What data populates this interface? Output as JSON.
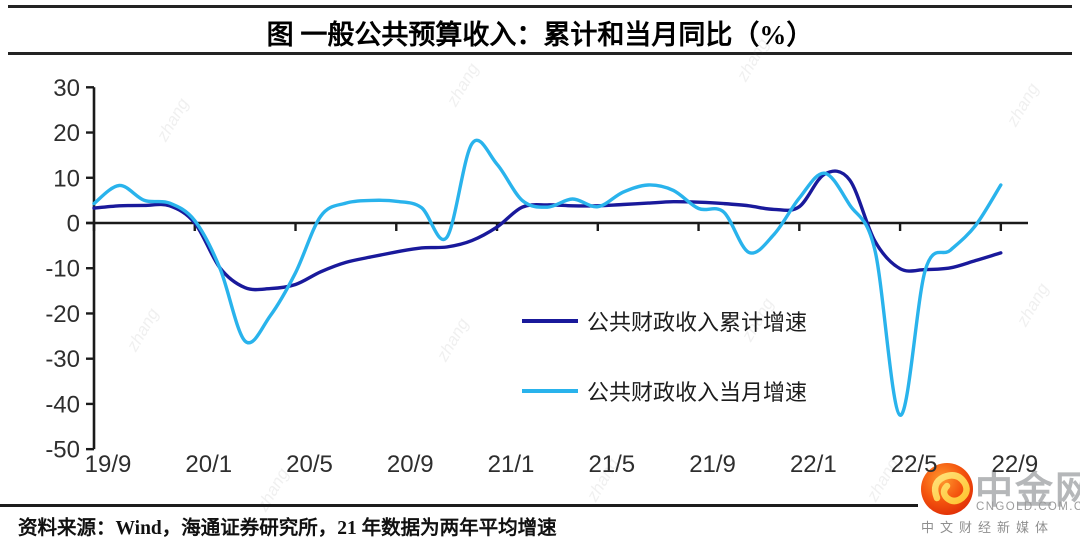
{
  "title": "图  一般公共预算收入：累计和当月同比（%）",
  "source_note": "资料来源：Wind，海通证券研究所，21 年数据为两年平均增速",
  "watermark": {
    "text": "zhang"
  },
  "logo": {
    "name": "中金网",
    "domain": "CNGOLD.COM.CN",
    "tagline": "中文财经新媒体"
  },
  "colors": {
    "cumulative": "#19199b",
    "monthly": "#29b3ec",
    "axis": "#1a1a1a",
    "logo_red_outer": "#e03008",
    "logo_red_inner": "#ff8c1f",
    "logo_gold": "#ffd24a"
  },
  "chart_data": {
    "type": "line",
    "smooth": true,
    "grid": false,
    "legend_position": "inside-center-bottom",
    "ylim": [
      -50,
      30
    ],
    "yticks": [
      30,
      20,
      10,
      0,
      -10,
      -20,
      -30,
      -40,
      -50
    ],
    "xtick_labels": [
      "19/9",
      "20/1",
      "20/5",
      "20/9",
      "21/1",
      "21/5",
      "21/9",
      "22/1",
      "22/5",
      "22/9"
    ],
    "x": [
      "19/9",
      "19/10",
      "19/11",
      "19/12",
      "20/1",
      "20/2",
      "20/3",
      "20/4",
      "20/5",
      "20/6",
      "20/7",
      "20/8",
      "20/9",
      "20/10",
      "20/11",
      "20/12",
      "21/1",
      "21/2",
      "21/3",
      "21/4",
      "21/5",
      "21/6",
      "21/7",
      "21/8",
      "21/9",
      "21/10",
      "21/11",
      "21/12",
      "22/1",
      "22/2",
      "22/3",
      "22/4",
      "22/5",
      "22/6",
      "22/7",
      "22/8",
      "22/9"
    ],
    "series": [
      {
        "name": "公共财政收入累计增速",
        "color_key": "cumulative",
        "values": [
          3.3,
          3.8,
          3.9,
          3.8,
          0.0,
          -9.9,
          -14.3,
          -14.5,
          -13.6,
          -10.8,
          -8.7,
          -7.5,
          -6.4,
          -5.5,
          -5.3,
          -3.9,
          -0.9,
          3.5,
          4.0,
          3.8,
          3.8,
          4.1,
          4.4,
          4.7,
          4.6,
          4.3,
          3.8,
          3.0,
          3.6,
          10.8,
          9.5,
          -4.0,
          -10.1,
          -10.3,
          -9.9,
          -8.3,
          -6.6
        ]
      },
      {
        "name": "公共财政收入当月增速",
        "color_key": "monthly",
        "values": [
          4.3,
          8.3,
          5.0,
          4.4,
          0.5,
          -10.0,
          -26.1,
          -20.5,
          -11.0,
          1.5,
          4.4,
          5.0,
          4.8,
          3.4,
          -3.2,
          17.5,
          13.0,
          5.0,
          3.5,
          5.3,
          3.6,
          6.8,
          8.4,
          7.2,
          3.2,
          2.4,
          -6.5,
          -2.5,
          5.5,
          11.0,
          4.0,
          -6.0,
          -42.5,
          -10.4,
          -6.0,
          -0.5,
          8.4
        ]
      }
    ]
  }
}
